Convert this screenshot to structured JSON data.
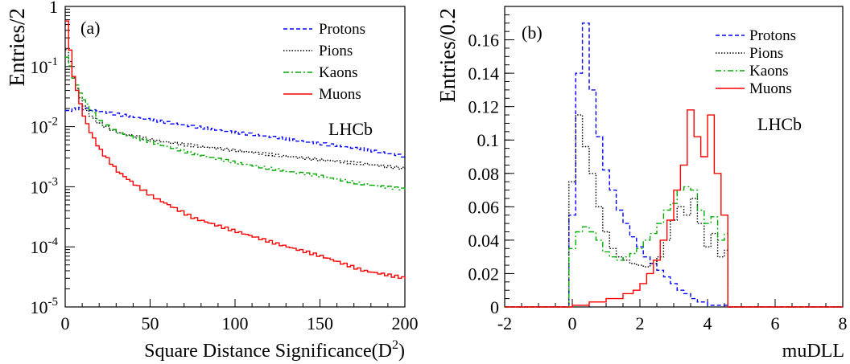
{
  "colors": {
    "protons": "#0000ff",
    "pions": "#000000",
    "kaons": "#00aa00",
    "muons": "#ff0000"
  },
  "chart_data": [
    {
      "type": "line",
      "panel_label": "(a)",
      "annotation": "LHCb",
      "xlabel_main": "Square Distance Significance(D",
      "xlabel_sup": "2",
      "xlabel_end": ")",
      "ylabel": "Entries/2",
      "xlim": [
        0,
        200
      ],
      "ylim": [
        1e-05,
        1
      ],
      "yscale": "log",
      "xticks": [
        0,
        50,
        100,
        150,
        200
      ],
      "xtick_labels": [
        "0",
        "50",
        "100",
        "150",
        "200"
      ],
      "yticks": [
        1e-05,
        0.0001,
        0.001,
        0.01,
        0.1,
        1
      ],
      "ytick_labels": [
        {
          "base": "10",
          "exp": "-5"
        },
        {
          "base": "10",
          "exp": "-4"
        },
        {
          "base": "10",
          "exp": "-3"
        },
        {
          "base": "10",
          "exp": "-2"
        },
        {
          "base": "10",
          "exp": "-1"
        },
        {
          "base": "1",
          "exp": ""
        }
      ],
      "legend_position": "top-right",
      "series": [
        {
          "name": "Protons",
          "style": "dashed",
          "color_key": "protons",
          "x": [
            0,
            5,
            10,
            20,
            30,
            50,
            75,
            100,
            125,
            150,
            175,
            200
          ],
          "y": [
            0.018,
            0.02,
            0.02,
            0.018,
            0.016,
            0.013,
            0.01,
            0.008,
            0.0065,
            0.0052,
            0.0042,
            0.0032
          ]
        },
        {
          "name": "Pions",
          "style": "dotted",
          "color_key": "pions",
          "x": [
            0,
            1,
            3,
            5,
            10,
            15,
            20,
            30,
            50,
            75,
            100,
            125,
            150,
            175,
            200
          ],
          "y": [
            0.2,
            0.15,
            0.09,
            0.05,
            0.022,
            0.014,
            0.011,
            0.008,
            0.006,
            0.0048,
            0.004,
            0.0033,
            0.0028,
            0.0024,
            0.002
          ]
        },
        {
          "name": "Kaons",
          "style": "dashdot",
          "color_key": "kaons",
          "x": [
            0,
            1,
            3,
            5,
            10,
            15,
            20,
            30,
            50,
            75,
            100,
            125,
            150,
            175,
            200
          ],
          "y": [
            0.15,
            0.12,
            0.08,
            0.055,
            0.028,
            0.018,
            0.012,
            0.008,
            0.0055,
            0.0035,
            0.0025,
            0.0019,
            0.0015,
            0.0011,
            0.0009
          ]
        },
        {
          "name": "Muons",
          "style": "solid",
          "color_key": "muons",
          "x": [
            0,
            1,
            2,
            3,
            5,
            10,
            15,
            20,
            30,
            40,
            50,
            75,
            100,
            125,
            150,
            175,
            200
          ],
          "y": [
            0.6,
            0.3,
            0.18,
            0.1,
            0.05,
            0.015,
            0.007,
            0.004,
            0.0018,
            0.0011,
            0.0007,
            0.0003,
            0.00018,
            0.00011,
            7e-05,
            4e-05,
            3e-05
          ]
        }
      ]
    },
    {
      "type": "line",
      "panel_label": "(b)",
      "annotation": "LHCb",
      "xlabel_main": "muDLL",
      "xlabel_sup": "",
      "xlabel_end": "",
      "ylabel": "Entries/0.2",
      "xlim": [
        -2,
        8
      ],
      "ylim": [
        0,
        0.18
      ],
      "yscale": "linear",
      "xticks": [
        -2,
        0,
        2,
        4,
        6,
        8
      ],
      "xtick_labels": [
        "-2",
        "0",
        "2",
        "4",
        "6",
        "8"
      ],
      "yticks": [
        0,
        0.02,
        0.04,
        0.06,
        0.08,
        0.1,
        0.12,
        0.14,
        0.16
      ],
      "ytick_labels": [
        "0",
        "0.02",
        "0.04",
        "0.06",
        "0.08",
        "0.1",
        "0.12",
        "0.14",
        "0.16"
      ],
      "legend_position": "top-right",
      "series": [
        {
          "name": "Protons",
          "style": "dashed",
          "color_key": "protons",
          "x": [
            -2,
            -0.2,
            -0.1,
            0.1,
            0.3,
            0.5,
            0.7,
            0.9,
            1.1,
            1.3,
            1.5,
            1.7,
            1.9,
            2.1,
            2.3,
            2.5,
            2.7,
            2.9,
            3.1,
            3.3,
            3.5,
            3.7,
            4.0,
            4.6,
            8
          ],
          "y": [
            0,
            0,
            0.055,
            0.14,
            0.17,
            0.13,
            0.102,
            0.082,
            0.07,
            0.058,
            0.05,
            0.042,
            0.036,
            0.03,
            0.026,
            0.022,
            0.018,
            0.014,
            0.01,
            0.008,
            0.005,
            0.003,
            0.001,
            0,
            0
          ]
        },
        {
          "name": "Pions",
          "style": "dotted",
          "color_key": "pions",
          "x": [
            -2,
            -0.2,
            -0.1,
            0.1,
            0.3,
            0.5,
            0.7,
            0.9,
            1.1,
            1.3,
            1.5,
            1.7,
            1.9,
            2.1,
            2.3,
            2.5,
            2.7,
            2.9,
            3.1,
            3.3,
            3.5,
            3.7,
            3.9,
            4.1,
            4.3,
            4.5,
            4.6,
            8
          ],
          "y": [
            0,
            0,
            0.075,
            0.115,
            0.096,
            0.08,
            0.06,
            0.045,
            0.035,
            0.03,
            0.028,
            0.026,
            0.025,
            0.024,
            0.026,
            0.03,
            0.04,
            0.052,
            0.06,
            0.055,
            0.065,
            0.05,
            0.036,
            0.044,
            0.03,
            0.034,
            0,
            0
          ]
        },
        {
          "name": "Kaons",
          "style": "dashdot",
          "color_key": "kaons",
          "x": [
            -2,
            -0.2,
            -0.1,
            0.1,
            0.3,
            0.5,
            0.7,
            0.9,
            1.1,
            1.3,
            1.5,
            1.7,
            1.9,
            2.1,
            2.3,
            2.5,
            2.7,
            2.9,
            3.1,
            3.3,
            3.5,
            3.7,
            3.9,
            4.1,
            4.3,
            4.5,
            4.6,
            8
          ],
          "y": [
            0,
            0,
            0.035,
            0.045,
            0.048,
            0.045,
            0.04,
            0.033,
            0.03,
            0.028,
            0.03,
            0.032,
            0.035,
            0.04,
            0.044,
            0.05,
            0.058,
            0.062,
            0.07,
            0.072,
            0.07,
            0.058,
            0.05,
            0.054,
            0.04,
            0.044,
            0,
            0
          ]
        },
        {
          "name": "Muons",
          "style": "solid",
          "color_key": "muons",
          "x": [
            -2,
            -0.2,
            0,
            0.5,
            1.0,
            1.5,
            1.8,
            2.0,
            2.2,
            2.4,
            2.6,
            2.8,
            3.0,
            3.2,
            3.4,
            3.6,
            3.8,
            4.0,
            4.2,
            4.4,
            4.6,
            8
          ],
          "y": [
            0,
            0,
            0.001,
            0.003,
            0.005,
            0.008,
            0.01,
            0.014,
            0.02,
            0.028,
            0.04,
            0.052,
            0.07,
            0.085,
            0.118,
            0.102,
            0.09,
            0.115,
            0.08,
            0.055,
            0,
            0
          ]
        }
      ]
    }
  ]
}
